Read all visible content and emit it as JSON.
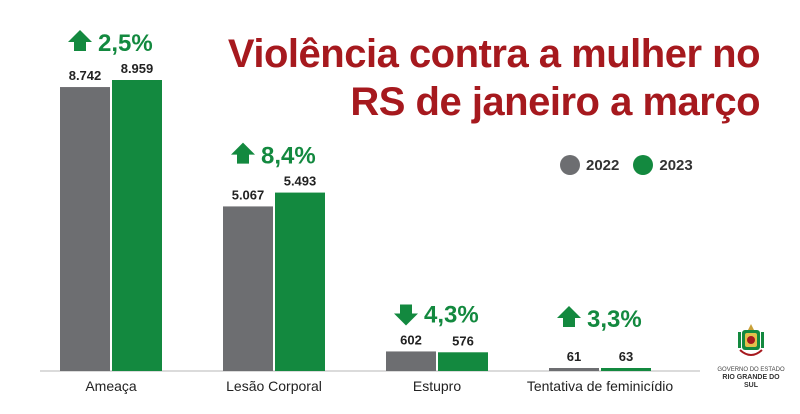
{
  "title_line1": "Violência contra a mulher no",
  "title_line2": "RS de janeiro a março",
  "logo": {
    "line1": "GOVERNO DO ESTADO",
    "line2": "RIO GRANDE DO SUL"
  },
  "colors": {
    "y2022": "#6d6e71",
    "y2023": "#13893f",
    "title": "#a6191e",
    "change_text": "#13893f"
  },
  "chart_data": {
    "type": "bar",
    "title": "Violência contra a mulher no RS de janeiro a março",
    "categories": [
      "Ameaça",
      "Lesão Corporal",
      "Estupro",
      "Tentativa de feminicídio"
    ],
    "series": [
      {
        "name": "2022",
        "values": [
          8742,
          5067,
          602,
          61
        ],
        "labels": [
          "8.742",
          "5.067",
          "602",
          "61"
        ]
      },
      {
        "name": "2023",
        "values": [
          8959,
          5493,
          576,
          63
        ],
        "labels": [
          "8.959",
          "5.493",
          "576",
          "63"
        ]
      }
    ],
    "changes": [
      {
        "label": "2,5%",
        "direction": "up"
      },
      {
        "label": "8,4%",
        "direction": "up"
      },
      {
        "label": "4,3%",
        "direction": "down"
      },
      {
        "label": "3,3%",
        "direction": "up"
      }
    ],
    "legend": "top-right",
    "grid": false
  }
}
